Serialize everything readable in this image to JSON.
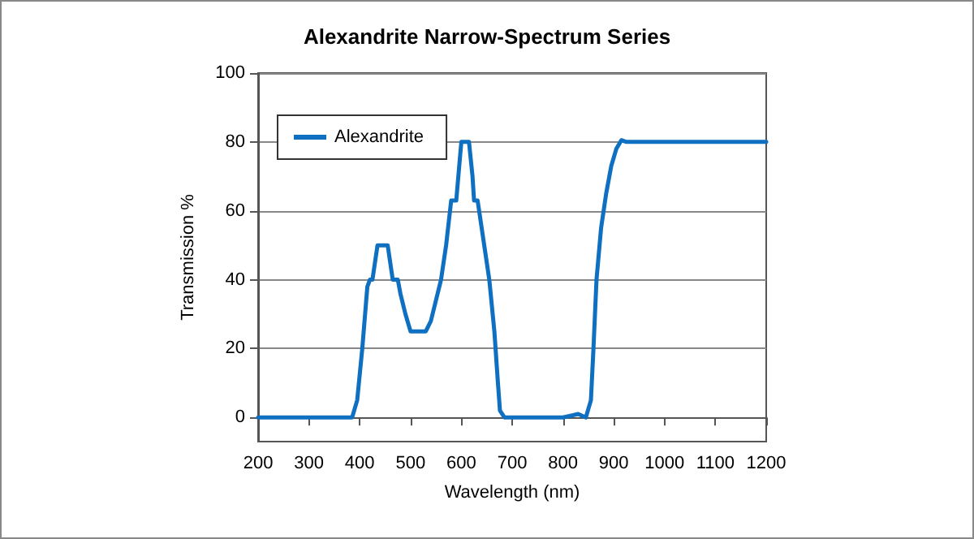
{
  "chart_data": {
    "type": "line",
    "title": "Alexandrite Narrow-Spectrum Series",
    "xlabel": "Wavelength (nm)",
    "ylabel": "Transmission %",
    "xlim": [
      200,
      1200
    ],
    "xticks": [
      200,
      300,
      400,
      500,
      600,
      700,
      800,
      900,
      1000,
      1100,
      1200
    ],
    "ylim": [
      -7,
      100
    ],
    "yticks": [
      0,
      20,
      40,
      60,
      80,
      100
    ],
    "grid": "y",
    "legend": "top left",
    "marker": "none",
    "line_style": "solid",
    "series": [
      {
        "name": "Alexandrite",
        "color": "#0f6fc0",
        "x": [
          200,
          385,
          395,
          405,
          415,
          420,
          425,
          435,
          455,
          460,
          465,
          475,
          480,
          490,
          500,
          530,
          540,
          560,
          570,
          580,
          590,
          597,
          600,
          615,
          622,
          625,
          632,
          640,
          655,
          665,
          672,
          676,
          685,
          800,
          830,
          845,
          855,
          860,
          866,
          875,
          885,
          895,
          905,
          915,
          925,
          1200
        ],
        "values": [
          0,
          0,
          5,
          20,
          38,
          40,
          40,
          50,
          50,
          45,
          40,
          40,
          36,
          30,
          25,
          25,
          28,
          40,
          50,
          63,
          63,
          75,
          80,
          80,
          70,
          63,
          63,
          55,
          40,
          25,
          10,
          2,
          0,
          0,
          1,
          0,
          5,
          20,
          40,
          55,
          65,
          73,
          78,
          80.5,
          80,
          80
        ]
      }
    ]
  }
}
